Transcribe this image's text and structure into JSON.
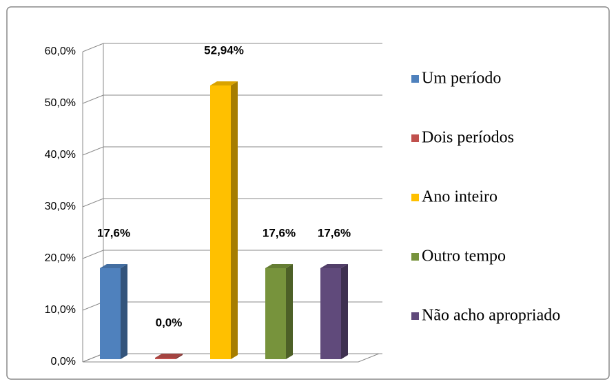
{
  "chart_data": {
    "type": "bar",
    "series": [
      {
        "name": "Um período",
        "color": "#4f81bd",
        "values": [
          17.6
        ],
        "value_labels": [
          "17,6%"
        ]
      },
      {
        "name": "Dois períodos",
        "color": "#c0504d",
        "values": [
          0
        ],
        "value_labels": [
          "0,0%"
        ]
      },
      {
        "name": "Ano inteiro",
        "color": "#ffc000",
        "values": [
          52.94
        ],
        "value_labels": [
          "52,94%"
        ]
      },
      {
        "name": "Outro tempo",
        "color": "#77933c",
        "values": [
          17.6
        ],
        "value_labels": [
          "17,6%"
        ]
      },
      {
        "name": "Não acho apropriado",
        "color": "#604a7b",
        "values": [
          17.6
        ],
        "value_labels": [
          "17,6%"
        ]
      }
    ],
    "ylim": [
      0,
      60
    ],
    "yticks": [
      {
        "value": 0,
        "label": "0,0%"
      },
      {
        "value": 10,
        "label": "10,0%"
      },
      {
        "value": 20,
        "label": "20,0%"
      },
      {
        "value": 30,
        "label": "30,0%"
      },
      {
        "value": 40,
        "label": "40,0%"
      },
      {
        "value": 50,
        "label": "50,0%"
      },
      {
        "value": 60,
        "label": "60,0%"
      }
    ],
    "grid": true,
    "legend": "right"
  }
}
